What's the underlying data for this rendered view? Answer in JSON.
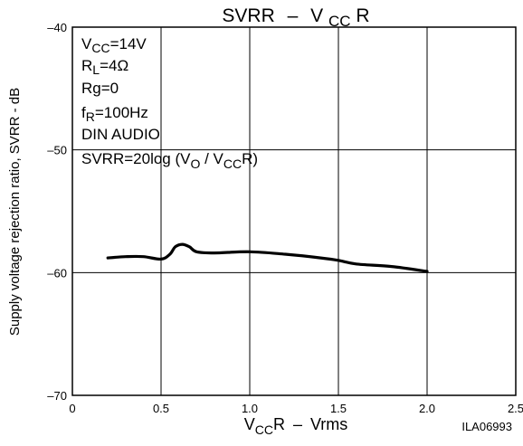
{
  "chart_data": {
    "type": "line",
    "title": {
      "main": "SVRR",
      "dash": "–",
      "v": "V",
      "sub": "CC",
      "tail": "R"
    },
    "xlabel": {
      "v": "V",
      "sub": "CC",
      "mid": "R",
      "dash": "–",
      "unit": "Vrms"
    },
    "ylabel": "Supply voltage rejection ratio, SVRR - dB",
    "xlim": [
      0,
      2.5
    ],
    "ylim": [
      -70,
      -40
    ],
    "grid": true,
    "x_ticks": [
      0,
      0.5,
      1.0,
      1.5,
      2.0,
      2.5
    ],
    "x_tick_labels": [
      "0",
      "0.5",
      "1.0",
      "1.5",
      "2.0",
      "2.5"
    ],
    "y_ticks": [
      -40,
      -50,
      -60,
      -70
    ],
    "y_tick_labels": [
      "–40",
      "–50",
      "–60",
      "–70"
    ],
    "conditions": {
      "vcc": {
        "pre": "V",
        "sub": "CC",
        "post": "=14V"
      },
      "rl": {
        "pre": "R",
        "sub": "L",
        "post": "=4Ω"
      },
      "rg": "Rg=0",
      "fr": {
        "pre": "f",
        "sub": "R",
        "post": "=100Hz"
      },
      "din": "DIN AUDIO",
      "formula": {
        "a": "SVRR=20log (V",
        "sub1": "O",
        "b": " / V",
        "sub2": "CC",
        "c": "R)"
      }
    },
    "series": [
      {
        "x": [
          0.2,
          0.3,
          0.4,
          0.5,
          0.55,
          0.58,
          0.62,
          0.66,
          0.7,
          0.8,
          1.0,
          1.2,
          1.4,
          1.5,
          1.6,
          1.8,
          2.0
        ],
        "y": [
          -58.8,
          -58.7,
          -58.7,
          -58.9,
          -58.5,
          -57.9,
          -57.7,
          -57.9,
          -58.3,
          -58.4,
          -58.3,
          -58.5,
          -58.8,
          -59.0,
          -59.3,
          -59.5,
          -59.9
        ]
      }
    ],
    "code_label": "ILA06993"
  }
}
